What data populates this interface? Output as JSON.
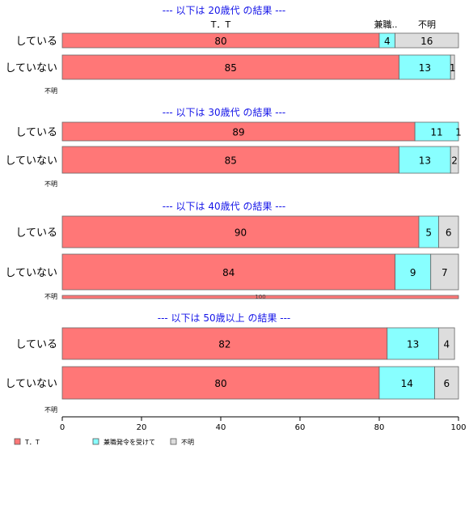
{
  "chart_data": {
    "type": "bar",
    "orientation": "horizontal",
    "stacked": "percent",
    "xlim": [
      0,
      100
    ],
    "x_ticks": [
      0,
      20,
      40,
      60,
      80,
      100
    ],
    "series": [
      {
        "name": "T．T",
        "color": "#FF7777"
      },
      {
        "name": "兼職発令を受けて",
        "color": "#88FFFF"
      },
      {
        "name": "不明",
        "color": "#DDDDDD"
      }
    ],
    "legend_position": "bottom-left",
    "header_labels": [
      "T．T",
      "兼職..",
      "不明"
    ],
    "panels": [
      {
        "title": "--- 以下は 20歳代 の結果 ---",
        "rows": [
          {
            "label": "している",
            "values": [
              80,
              4,
              16
            ]
          },
          {
            "label": "していない",
            "values": [
              85,
              13,
              1
            ]
          },
          {
            "label": "不明",
            "values": []
          }
        ]
      },
      {
        "title": "--- 以下は 30歳代 の結果 ---",
        "rows": [
          {
            "label": "している",
            "values": [
              89,
              11,
              1
            ]
          },
          {
            "label": "していない",
            "values": [
              85,
              13,
              2
            ]
          },
          {
            "label": "不明",
            "values": []
          }
        ]
      },
      {
        "title": "--- 以下は 40歳代 の結果 ---",
        "rows": [
          {
            "label": "している",
            "values": [
              90,
              5,
              6
            ]
          },
          {
            "label": "していない",
            "values": [
              84,
              9,
              7
            ]
          },
          {
            "label": "不明",
            "values": [
              100,
              0,
              0
            ],
            "thin": true
          }
        ]
      },
      {
        "title": "--- 以下は 50歳以上 の結果 ---",
        "rows": [
          {
            "label": "している",
            "values": [
              82,
              13,
              4
            ]
          },
          {
            "label": "していない",
            "values": [
              80,
              14,
              6
            ]
          },
          {
            "label": "不明",
            "values": []
          }
        ]
      }
    ]
  }
}
